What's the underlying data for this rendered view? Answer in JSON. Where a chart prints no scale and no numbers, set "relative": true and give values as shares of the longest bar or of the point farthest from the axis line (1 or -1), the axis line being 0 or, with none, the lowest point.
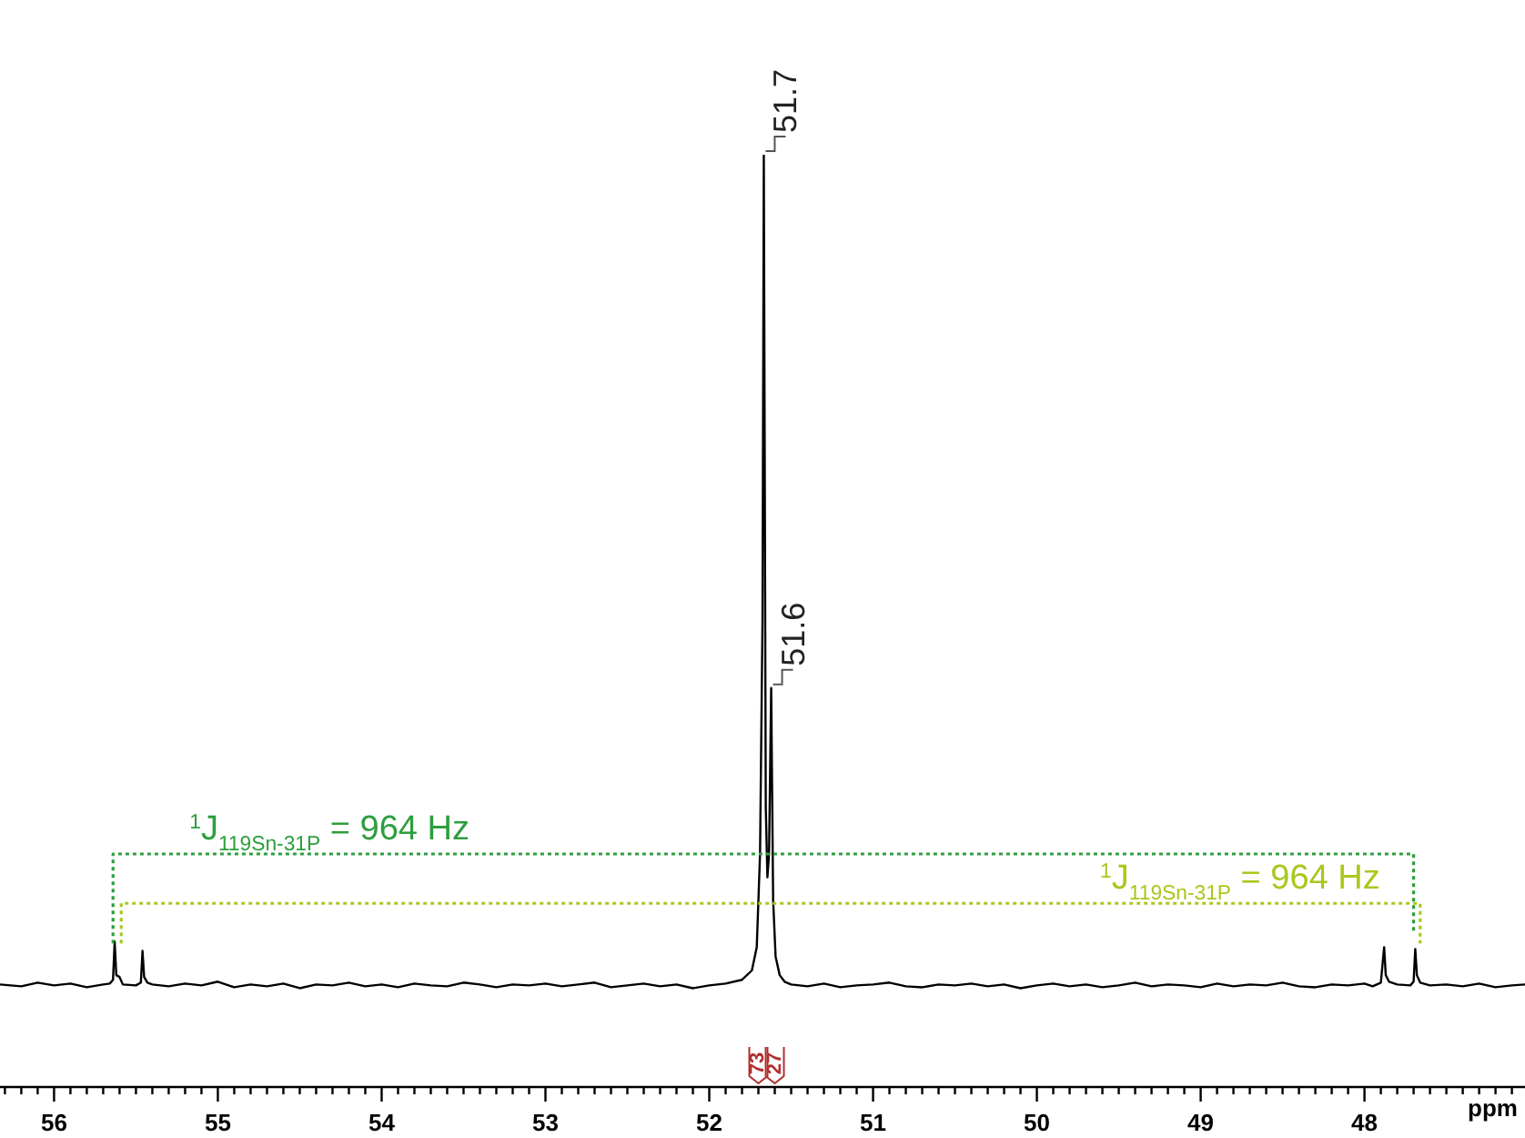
{
  "chart_data": {
    "type": "line",
    "relative": true,
    "xlabel": "ppm",
    "xlim": [
      56.33,
      47.02
    ],
    "marker": "none",
    "xticks": [
      {
        "value": 56.3,
        "label": null
      },
      {
        "value": 56.2,
        "label": null
      },
      {
        "value": 56.1,
        "label": null
      },
      56,
      {
        "value": 55.9,
        "label": null
      },
      {
        "value": 55.8,
        "label": null
      },
      {
        "value": 55.7,
        "label": null
      },
      {
        "value": 55.6,
        "label": null
      },
      {
        "value": 55.5,
        "label": null
      },
      {
        "value": 55.4,
        "label": null
      },
      {
        "value": 55.3,
        "label": null
      },
      {
        "value": 55.2,
        "label": null
      },
      {
        "value": 55.1,
        "label": null
      },
      55,
      {
        "value": 54.9,
        "label": null
      },
      {
        "value": 54.8,
        "label": null
      },
      {
        "value": 54.7,
        "label": null
      },
      {
        "value": 54.6,
        "label": null
      },
      {
        "value": 54.5,
        "label": null
      },
      {
        "value": 54.4,
        "label": null
      },
      {
        "value": 54.3,
        "label": null
      },
      {
        "value": 54.2,
        "label": null
      },
      {
        "value": 54.1,
        "label": null
      },
      54,
      {
        "value": 53.9,
        "label": null
      },
      {
        "value": 53.8,
        "label": null
      },
      {
        "value": 53.7,
        "label": null
      },
      {
        "value": 53.6,
        "label": null
      },
      {
        "value": 53.5,
        "label": null
      },
      {
        "value": 53.4,
        "label": null
      },
      {
        "value": 53.3,
        "label": null
      },
      {
        "value": 53.2,
        "label": null
      },
      {
        "value": 53.1,
        "label": null
      },
      53,
      {
        "value": 52.9,
        "label": null
      },
      {
        "value": 52.8,
        "label": null
      },
      {
        "value": 52.7,
        "label": null
      },
      {
        "value": 52.6,
        "label": null
      },
      {
        "value": 52.5,
        "label": null
      },
      {
        "value": 52.4,
        "label": null
      },
      {
        "value": 52.3,
        "label": null
      },
      {
        "value": 52.2,
        "label": null
      },
      {
        "value": 52.1,
        "label": null
      },
      52,
      {
        "value": 51.9,
        "label": null
      },
      {
        "value": 51.8,
        "label": null
      },
      {
        "value": 51.7,
        "label": null
      },
      {
        "value": 51.6,
        "label": null
      },
      {
        "value": 51.5,
        "label": null
      },
      {
        "value": 51.4,
        "label": null
      },
      {
        "value": 51.3,
        "label": null
      },
      {
        "value": 51.2,
        "label": null
      },
      {
        "value": 51.1,
        "label": null
      },
      51,
      {
        "value": 50.9,
        "label": null
      },
      {
        "value": 50.8,
        "label": null
      },
      {
        "value": 50.7,
        "label": null
      },
      {
        "value": 50.6,
        "label": null
      },
      {
        "value": 50.5,
        "label": null
      },
      {
        "value": 50.4,
        "label": null
      },
      {
        "value": 50.3,
        "label": null
      },
      {
        "value": 50.2,
        "label": null
      },
      {
        "value": 50.1,
        "label": null
      },
      50,
      {
        "value": 49.9,
        "label": null
      },
      {
        "value": 49.8,
        "label": null
      },
      {
        "value": 49.7,
        "label": null
      },
      {
        "value": 49.6,
        "label": null
      },
      {
        "value": 49.5,
        "label": null
      },
      {
        "value": 49.4,
        "label": null
      },
      {
        "value": 49.3,
        "label": null
      },
      {
        "value": 49.2,
        "label": null
      },
      {
        "value": 49.1,
        "label": null
      },
      49,
      {
        "value": 48.9,
        "label": null
      },
      {
        "value": 48.8,
        "label": null
      },
      {
        "value": 48.7,
        "label": null
      },
      {
        "value": 48.6,
        "label": null
      },
      {
        "value": 48.5,
        "label": null
      },
      {
        "value": 48.4,
        "label": null
      },
      {
        "value": 48.3,
        "label": null
      },
      {
        "value": 48.2,
        "label": null
      },
      {
        "value": 48.1,
        "label": null
      },
      48,
      {
        "value": 47.9,
        "label": null
      },
      {
        "value": 47.8,
        "label": null
      },
      {
        "value": 47.7,
        "label": null
      },
      {
        "value": 47.6,
        "label": null
      },
      {
        "value": 47.5,
        "label": null
      },
      {
        "value": 47.4,
        "label": null
      },
      {
        "value": 47.3,
        "label": null
      },
      {
        "value": 47.2,
        "label": null
      },
      {
        "value": 47.1,
        "label": null
      }
    ],
    "series": [
      {
        "color": "#000000",
        "line_style": "solid",
        "x": [
          56.33,
          56.2,
          56.1,
          56.0,
          55.9,
          55.8,
          55.7,
          55.66,
          55.64,
          55.63,
          55.62,
          55.6,
          55.58,
          55.5,
          55.47,
          55.46,
          55.45,
          55.43,
          55.4,
          55.3,
          55.2,
          55.1,
          55.0,
          54.9,
          54.8,
          54.7,
          54.6,
          54.5,
          54.4,
          54.3,
          54.2,
          54.1,
          54.0,
          53.9,
          53.8,
          53.7,
          53.6,
          53.5,
          53.4,
          53.3,
          53.2,
          53.1,
          53.0,
          52.9,
          52.8,
          52.7,
          52.6,
          52.5,
          52.4,
          52.3,
          52.2,
          52.1,
          52.0,
          51.9,
          51.8,
          51.74,
          51.71,
          51.69,
          51.675,
          51.667,
          51.655,
          51.645,
          51.635,
          51.622,
          51.61,
          51.595,
          51.57,
          51.54,
          51.5,
          51.4,
          51.3,
          51.2,
          51.1,
          51.0,
          50.9,
          50.8,
          50.7,
          50.6,
          50.5,
          50.4,
          50.3,
          50.2,
          50.1,
          50.0,
          49.9,
          49.8,
          49.7,
          49.6,
          49.5,
          49.4,
          49.3,
          49.2,
          49.1,
          49.0,
          48.9,
          48.8,
          48.7,
          48.6,
          48.5,
          48.4,
          48.3,
          48.2,
          48.1,
          48.0,
          47.95,
          47.9,
          47.88,
          47.87,
          47.85,
          47.8,
          47.72,
          47.7,
          47.69,
          47.68,
          47.66,
          47.6,
          47.5,
          47.4,
          47.3,
          47.2,
          47.1,
          47.02
        ],
        "values": [
          0.11,
          0.108,
          0.112,
          0.109,
          0.111,
          0.107,
          0.11,
          0.111,
          0.115,
          0.156,
          0.12,
          0.118,
          0.11,
          0.109,
          0.112,
          0.146,
          0.118,
          0.112,
          0.11,
          0.108,
          0.111,
          0.109,
          0.113,
          0.107,
          0.11,
          0.108,
          0.111,
          0.106,
          0.11,
          0.109,
          0.112,
          0.108,
          0.11,
          0.107,
          0.111,
          0.109,
          0.108,
          0.112,
          0.11,
          0.107,
          0.11,
          0.109,
          0.111,
          0.108,
          0.11,
          0.112,
          0.107,
          0.109,
          0.111,
          0.108,
          0.11,
          0.106,
          0.109,
          0.111,
          0.115,
          0.125,
          0.15,
          0.25,
          0.5,
          1,
          0.3,
          0.225,
          0.25,
          0.428,
          0.2,
          0.14,
          0.12,
          0.113,
          0.11,
          0.108,
          0.111,
          0.107,
          0.109,
          0.11,
          0.112,
          0.108,
          0.107,
          0.11,
          0.109,
          0.111,
          0.108,
          0.11,
          0.106,
          0.109,
          0.111,
          0.108,
          0.11,
          0.107,
          0.109,
          0.112,
          0.108,
          0.11,
          0.109,
          0.107,
          0.111,
          0.108,
          0.11,
          0.109,
          0.112,
          0.108,
          0.107,
          0.11,
          0.109,
          0.111,
          0.108,
          0.112,
          0.15,
          0.12,
          0.113,
          0.11,
          0.109,
          0.113,
          0.148,
          0.12,
          0.112,
          0.109,
          0.11,
          0.108,
          0.111,
          0.107,
          0.109,
          0.11
        ]
      },
      {
        "name": "$^{1}$J$_{119Sn-31P}$ = 964 Hz",
        "color": "#2e9e3e",
        "line_style": "dotted",
        "x": [
          55.64,
          55.64,
          47.7,
          47.7
        ],
        "values": [
          0.154,
          0.25,
          0.25,
          0.164
        ]
      },
      {
        "name": "$^{1}$J$_{119Sn-31P}$ = 964 Hz",
        "color": "#a8c81e",
        "line_style": "dotted",
        "x": [
          55.59,
          55.59,
          47.66,
          47.66
        ],
        "values": [
          0.154,
          0.197,
          0.197,
          0.154
        ]
      }
    ],
    "annotations": [
      {
        "text": "51.7",
        "x": 51.667,
        "y": 1
      },
      {
        "text": "51.6",
        "x": 51.622,
        "y": 0.428
      },
      {
        "text": "73",
        "x": 51.7
      },
      {
        "text": "27",
        "x": 51.6
      }
    ]
  }
}
